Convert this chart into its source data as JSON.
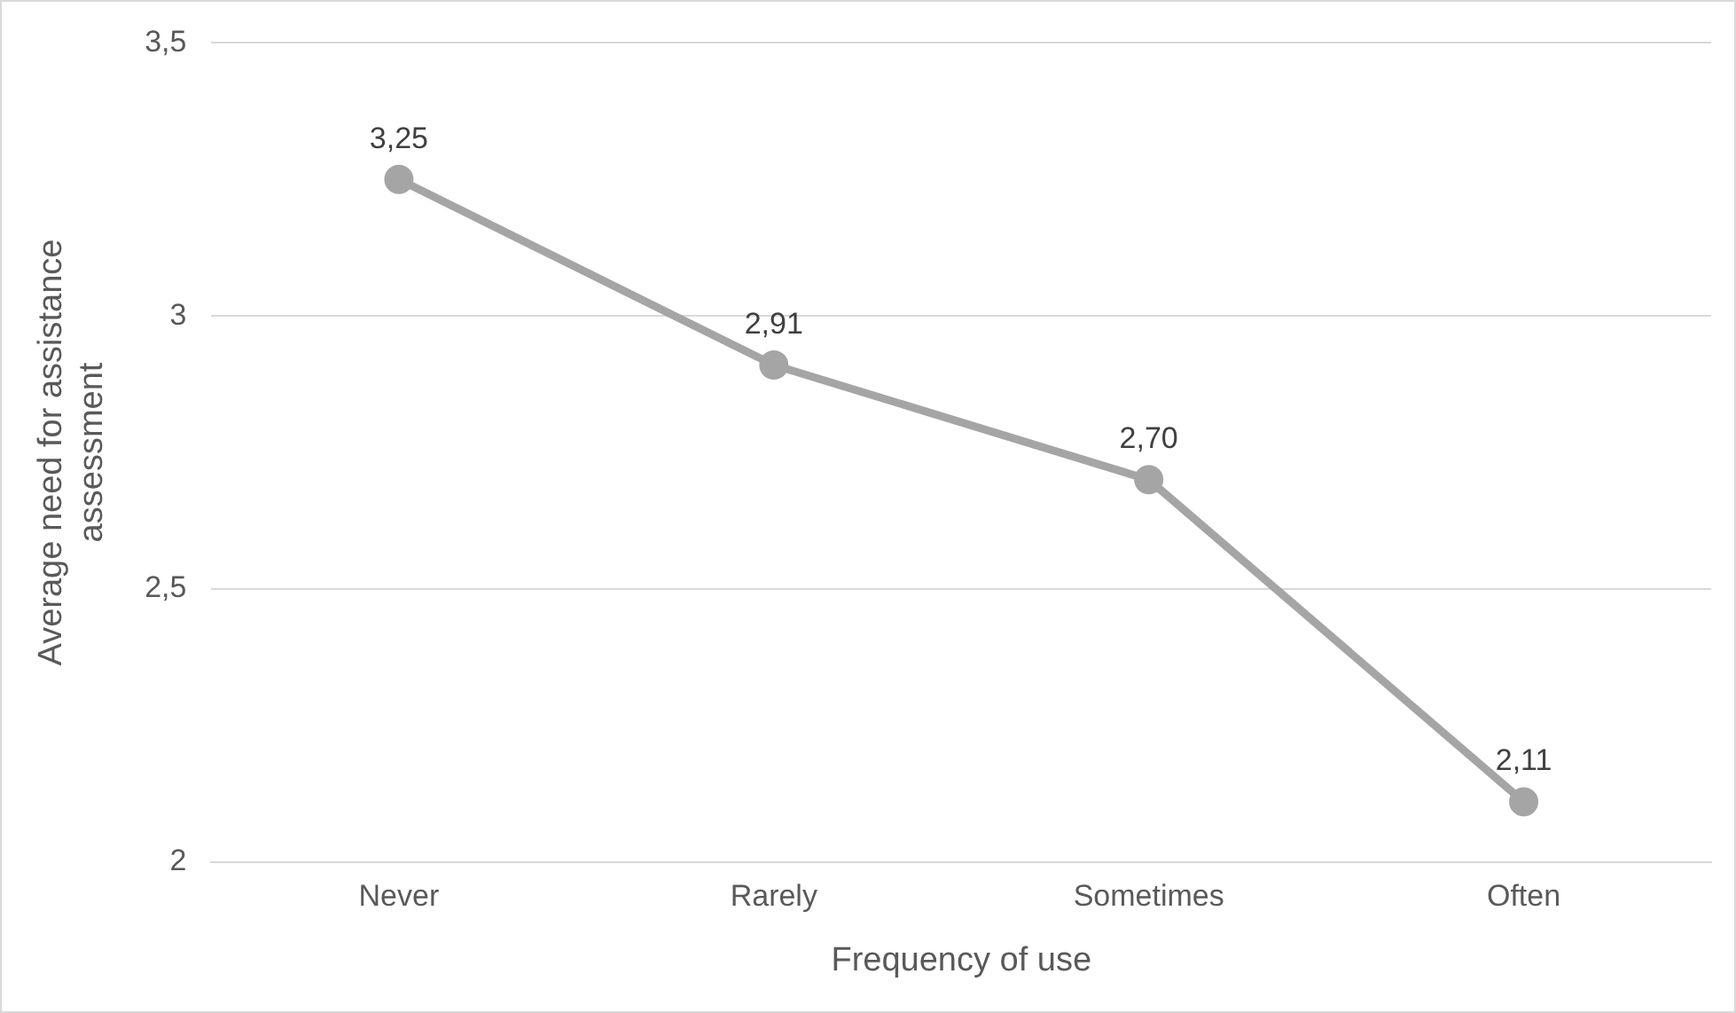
{
  "chart_data": {
    "type": "line",
    "xlabel": "Frequency of use",
    "ylabel": "Average need for assistance assessment",
    "categories": [
      "Never",
      "Rarely",
      "Sometimes",
      "Often"
    ],
    "series": [
      {
        "color": "#a5a5a5",
        "values": [
          3.25,
          2.91,
          2.7,
          2.11
        ],
        "value_labels": [
          "3,25",
          "2,91",
          "2,70",
          "2,11"
        ]
      }
    ],
    "ylim": [
      2,
      3.5
    ],
    "yticks": [
      2,
      {
        "value": 2.5,
        "label": "2,5"
      },
      3,
      {
        "value": 3.5,
        "label": "3,5"
      }
    ],
    "grid": "y",
    "legend": false,
    "marker": "circle",
    "line_style": "solid"
  }
}
